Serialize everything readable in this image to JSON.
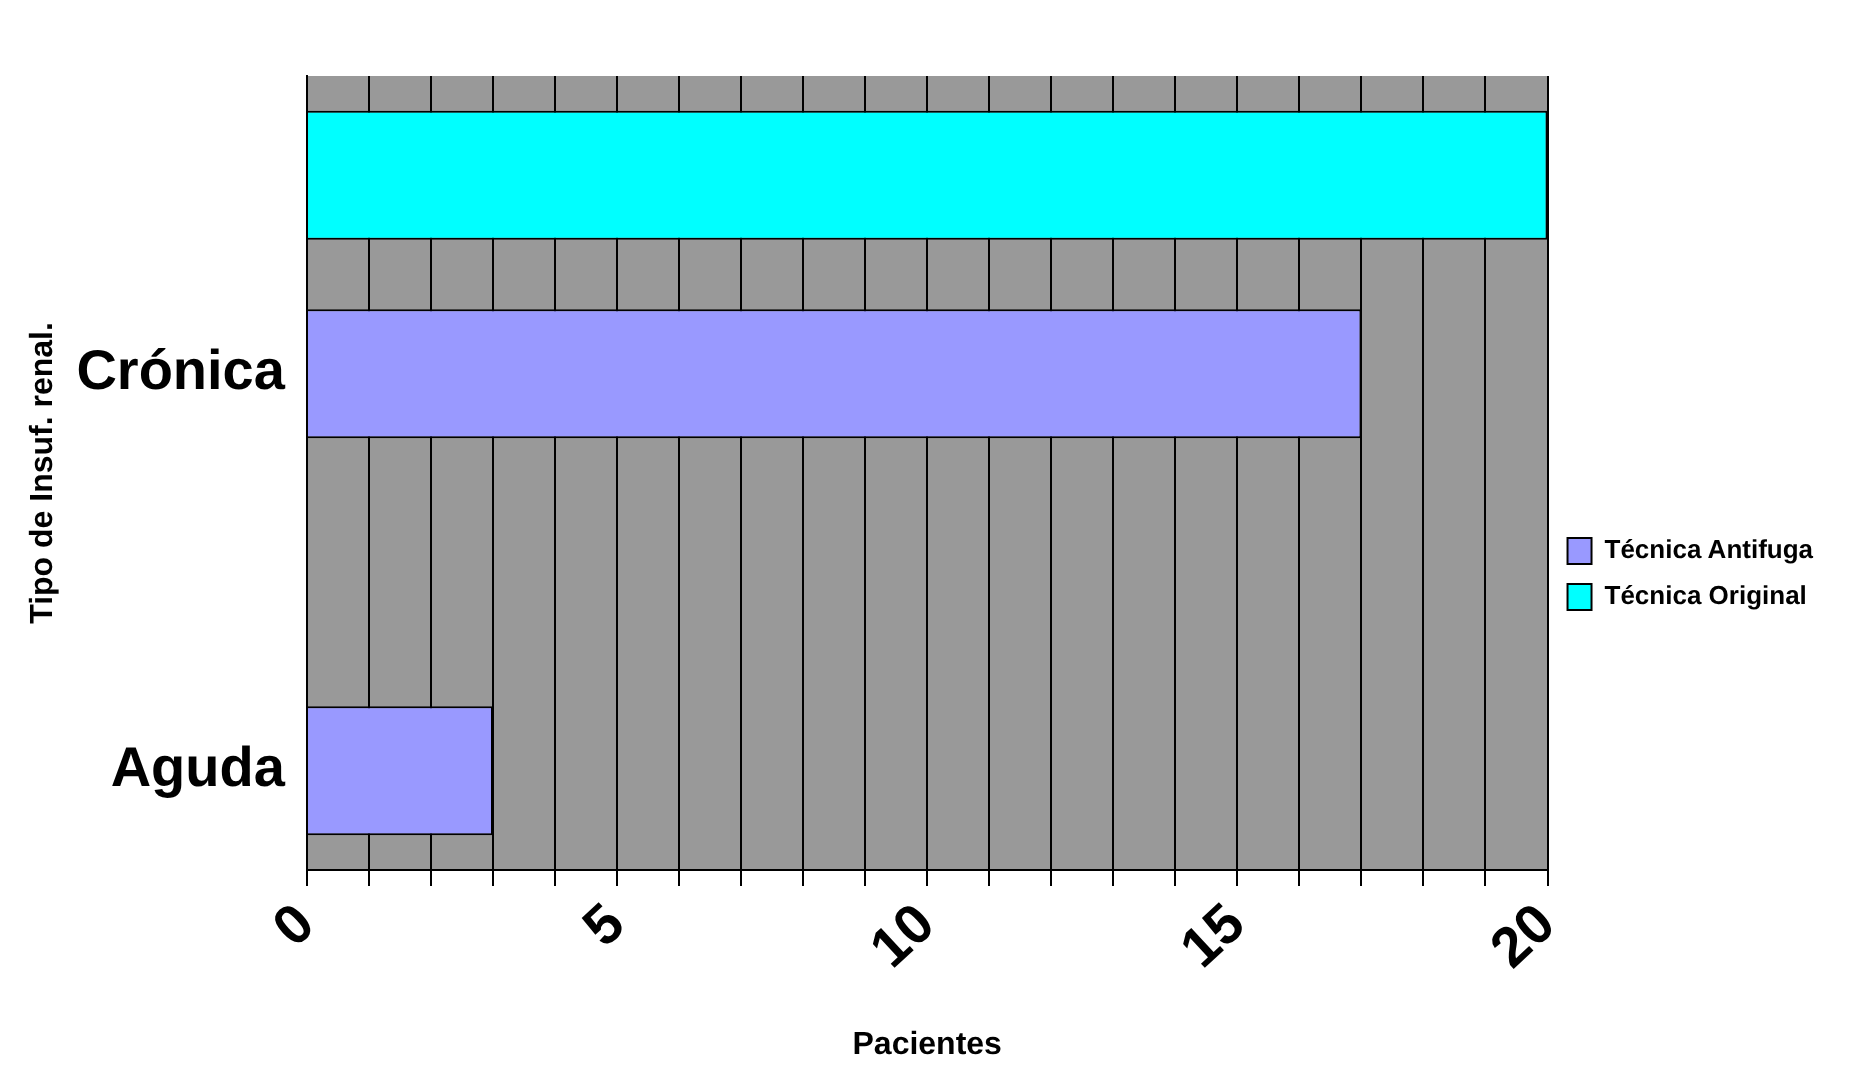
{
  "chart_data": {
    "type": "bar",
    "orientation": "horizontal",
    "xlabel": "Pacientes",
    "ylabel": "Tipo de Insuf. renal.",
    "categories": [
      null,
      "Crónica",
      null,
      "Aguda"
    ],
    "series": [
      {
        "name": "Técnica Antifuga",
        "color": "#9999ff",
        "values": [
          null,
          17,
          null,
          3
        ]
      },
      {
        "name": "Técnica Original",
        "color": "#00ffff",
        "values": [
          20,
          null,
          null,
          null
        ]
      }
    ],
    "xlim": [
      0,
      20
    ],
    "xticks": [
      0,
      {
        "value": 1,
        "label": null
      },
      {
        "value": 2,
        "label": null
      },
      {
        "value": 3,
        "label": null
      },
      {
        "value": 4,
        "label": null
      },
      5,
      {
        "value": 6,
        "label": null
      },
      {
        "value": 7,
        "label": null
      },
      {
        "value": 8,
        "label": null
      },
      {
        "value": 9,
        "label": null
      },
      10,
      {
        "value": 11,
        "label": null
      },
      {
        "value": 12,
        "label": null
      },
      {
        "value": 13,
        "label": null
      },
      {
        "value": 14,
        "label": null
      },
      15,
      {
        "value": 16,
        "label": null
      },
      {
        "value": 17,
        "label": null
      },
      {
        "value": 18,
        "label": null
      },
      {
        "value": 19,
        "label": null
      },
      20
    ],
    "grid": "x",
    "legend": "right"
  }
}
